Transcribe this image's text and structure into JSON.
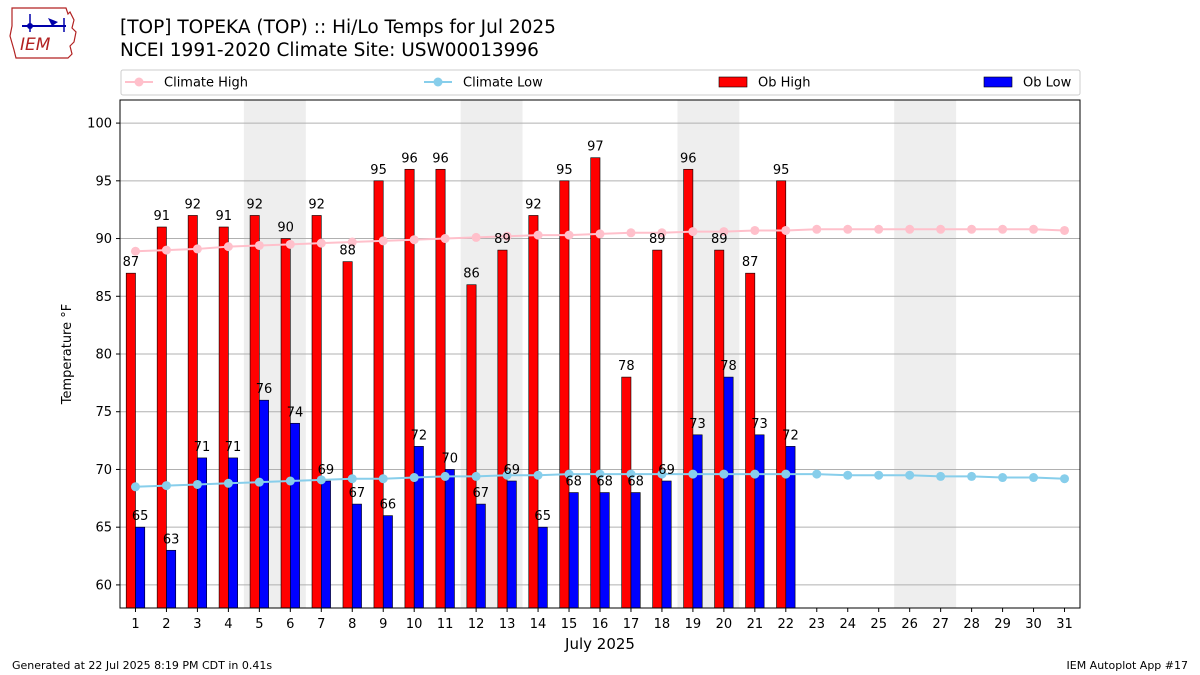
{
  "logo_text": "IEM",
  "title_line1": "[TOP] TOPEKA (TOP) :: Hi/Lo Temps for Jul 2025",
  "title_line2": "NCEI 1991-2020 Climate Site: USW00013996",
  "footer_left": "Generated at 22 Jul 2025 8:19 PM CDT in 0.41s",
  "footer_right": "IEM Autoplot App #17",
  "colors": {
    "ob_high": "#ff0000",
    "ob_low": "#0000ff",
    "climate_high": "#ffc0cb",
    "climate_low": "#87ceeb",
    "weekend_shade": "#eeeeee",
    "grid": "#b0b0b0"
  },
  "chart_data": {
    "type": "bar",
    "xlabel": "July 2025",
    "ylabel": "Temperature °F",
    "ylim": [
      58,
      102
    ],
    "yticks": [
      60,
      65,
      70,
      75,
      80,
      85,
      90,
      95,
      100
    ],
    "xlim": [
      0.5,
      31.5
    ],
    "grid": "horizontal",
    "legend_position": "top",
    "days": [
      1,
      2,
      3,
      4,
      5,
      6,
      7,
      8,
      9,
      10,
      11,
      12,
      13,
      14,
      15,
      16,
      17,
      18,
      19,
      20,
      21,
      22,
      23,
      24,
      25,
      26,
      27,
      28,
      29,
      30,
      31
    ],
    "weekend_shading": [
      [
        5,
        6
      ],
      [
        12,
        13
      ],
      [
        19,
        20
      ],
      [
        26,
        27
      ]
    ],
    "series": [
      {
        "name": "Climate High",
        "kind": "line",
        "values": [
          88.9,
          89.0,
          89.1,
          89.3,
          89.4,
          89.5,
          89.6,
          89.7,
          89.8,
          89.9,
          90.0,
          90.1,
          90.2,
          90.3,
          90.3,
          90.4,
          90.5,
          90.5,
          90.6,
          90.6,
          90.7,
          90.7,
          90.8,
          90.8,
          90.8,
          90.8,
          90.8,
          90.8,
          90.8,
          90.8,
          90.7
        ]
      },
      {
        "name": "Climate Low",
        "kind": "line",
        "values": [
          68.5,
          68.6,
          68.7,
          68.8,
          68.9,
          69.0,
          69.1,
          69.2,
          69.2,
          69.3,
          69.4,
          69.4,
          69.5,
          69.5,
          69.6,
          69.6,
          69.6,
          69.6,
          69.6,
          69.6,
          69.6,
          69.6,
          69.6,
          69.5,
          69.5,
          69.5,
          69.4,
          69.4,
          69.3,
          69.3,
          69.2
        ]
      },
      {
        "name": "Ob High",
        "kind": "bar",
        "values": [
          87,
          91,
          92,
          91,
          92,
          90,
          92,
          88,
          95,
          96,
          96,
          86,
          89,
          92,
          95,
          97,
          78,
          89,
          96,
          89,
          87,
          95
        ]
      },
      {
        "name": "Ob Low",
        "kind": "bar",
        "values": [
          65,
          63,
          71,
          71,
          76,
          74,
          69,
          67,
          66,
          72,
          70,
          67,
          69,
          65,
          68,
          68,
          68,
          69,
          73,
          78,
          73,
          72
        ]
      }
    ]
  }
}
